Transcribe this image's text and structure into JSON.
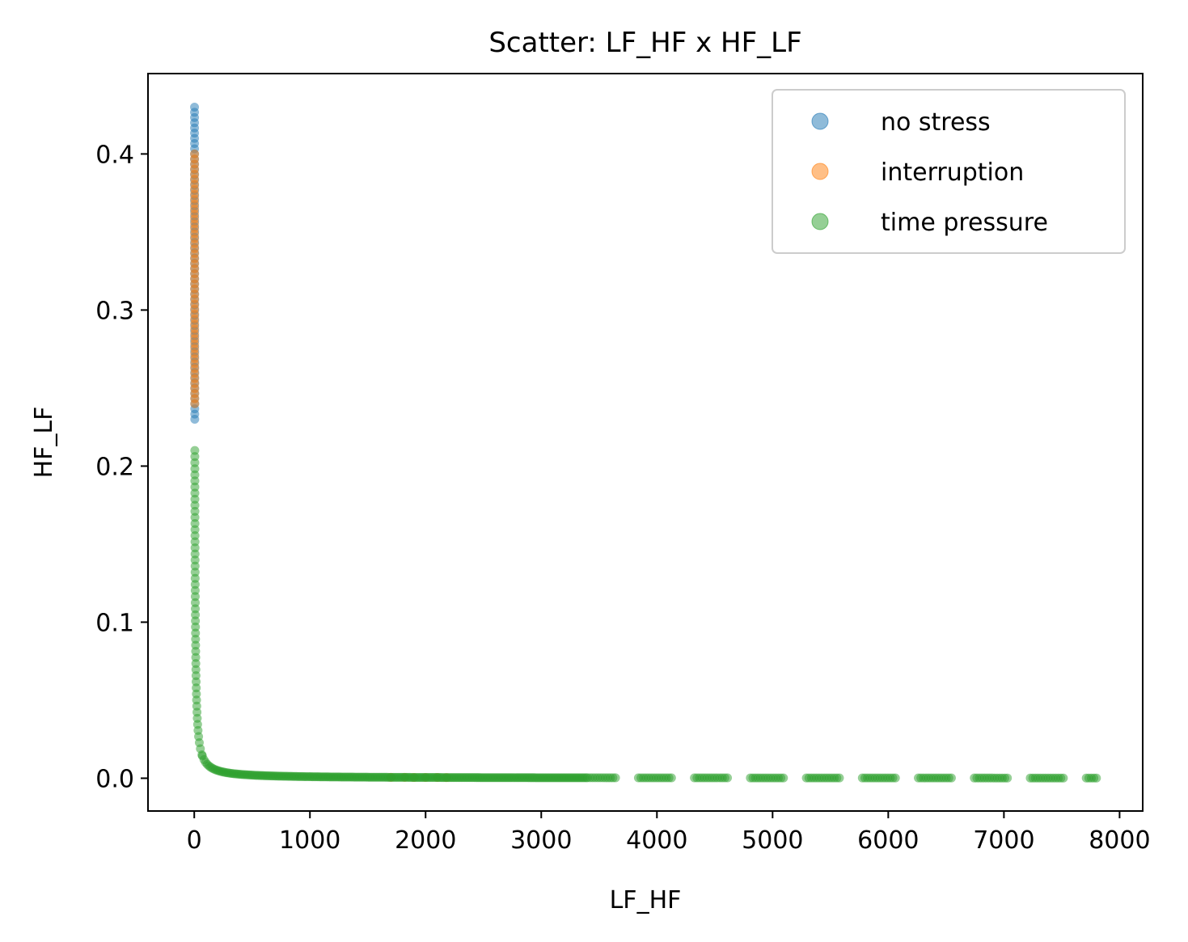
{
  "chart_data": {
    "type": "scatter",
    "title": "Scatter: LF_HF x HF_LF",
    "xlabel": "LF_HF",
    "ylabel": "HF_LF",
    "xlim": [
      -400,
      8200
    ],
    "ylim": [
      -0.021,
      0.4515
    ],
    "x_ticks": [
      0,
      1000,
      2000,
      3000,
      4000,
      5000,
      6000,
      7000,
      8000
    ],
    "y_ticks": [
      0.0,
      0.1,
      0.2,
      0.3,
      0.4
    ],
    "x_tick_labels": [
      "0",
      "1000",
      "2000",
      "3000",
      "4000",
      "5000",
      "6000",
      "7000",
      "8000"
    ],
    "y_tick_labels": [
      "0.0",
      "0.1",
      "0.2",
      "0.3",
      "0.4"
    ],
    "grid": false,
    "legend_position": "upper right",
    "series": [
      {
        "name": "no stress",
        "color": "#1f77b4",
        "alpha": 0.5,
        "x_range": [
          2.33,
          4.35
        ],
        "y_range": [
          0.23,
          0.43
        ],
        "y_tail_max": 0.26
      },
      {
        "name": "interruption",
        "color": "#ff7f0e",
        "alpha": 0.5,
        "x_range": [
          2.5,
          4.2
        ],
        "y_range": [
          0.24,
          0.4
        ],
        "x_tail_max": 2200
      },
      {
        "name": "time pressure",
        "color": "#2ca02c",
        "alpha": 0.5,
        "x_range": [
          4.7,
          7800
        ],
        "y_range": [
          0.0,
          0.21
        ]
      }
    ]
  }
}
